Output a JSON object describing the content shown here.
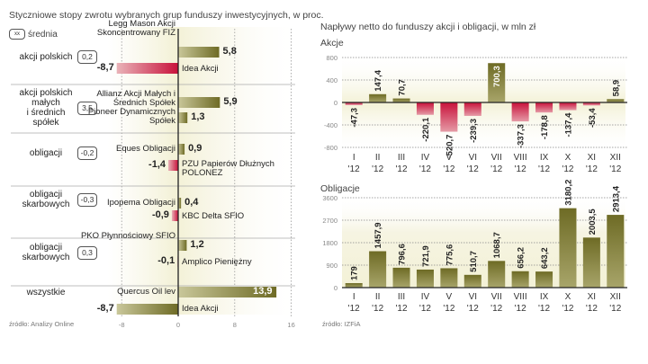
{
  "left": {
    "title": "Styczniowe stopy zwrotu wybranych grup funduszy inwestycyjnych, w proc.",
    "legend_box": "xx",
    "legend_label": "średnia",
    "source": "źródło: Analizy Online"
  },
  "right": {
    "title": "Napływy netto do funduszy akcji i obligacji, w mln zł",
    "source": "źródło: IZFiA"
  },
  "colors": {
    "positive": "#7a7a2e",
    "negative": "#c8213a",
    "background": "#f3f1d6",
    "axis": "#222222"
  },
  "chart_data": [
    {
      "type": "bar",
      "orientation": "horizontal",
      "title": "Styczniowe stopy zwrotu wybranych grup funduszy inwestycyjnych, w proc.",
      "xlim": [
        -8,
        16
      ],
      "xticks": [
        "-8",
        "0",
        "8",
        "16"
      ],
      "grid": true,
      "groups": [
        {
          "category": "akcji polskich",
          "average": "0,2",
          "best": {
            "fund": "Legg Mason Akcji Skoncentrowany FIZ",
            "value": 5.8,
            "label": "5,8"
          },
          "worst": {
            "fund": "Idea Akcji",
            "value": -8.7,
            "label": "-8,7"
          }
        },
        {
          "category": "akcji polskich małych i średnich spółek",
          "average": "3,5",
          "best": {
            "fund": "Allianz Akcji Małych i Średnich Spółek",
            "value": 5.9,
            "label": "5,9"
          },
          "worst": {
            "fund": "Pioneer Dynamicznych Spółek",
            "value": 1.3,
            "label": "1,3"
          }
        },
        {
          "category": "obligacji",
          "average": "-0,2",
          "best": {
            "fund": "Eques Obligacji",
            "value": 0.9,
            "label": "0,9"
          },
          "worst": {
            "fund": "PZU Papierów Dłużnych POLONEZ",
            "value": -1.4,
            "label": "-1,4"
          }
        },
        {
          "category": "obligacji skarbowych",
          "average": "-0,3",
          "best": {
            "fund": "Ipopema Obligacji",
            "value": 0.4,
            "label": "0,4"
          },
          "worst": {
            "fund": "KBC Delta SFIO",
            "value": -0.9,
            "label": "-0,9"
          }
        },
        {
          "category": "obligacji skarbowych",
          "average": "0,3",
          "best": {
            "fund": "PKO Płynnościowy SFIO",
            "value": 1.2,
            "label": "1,2"
          },
          "worst": {
            "fund": "Amplico Pieniężny",
            "value": -0.1,
            "label": "-0,1"
          }
        },
        {
          "category": "wszystkie",
          "average": "",
          "best": {
            "fund": "Quercus Oil lev",
            "value": 13.9,
            "label": "13,9"
          },
          "worst": {
            "fund": "Idea Akcji",
            "value": -8.7,
            "label": "-8,7"
          }
        }
      ]
    },
    {
      "type": "bar",
      "title": "Akcje",
      "categories": [
        "I '12",
        "II '12",
        "III '12",
        "IV '12",
        "V '12",
        "VI '12",
        "VII '12",
        "VIII '12",
        "IX '12",
        "X '12",
        "XI '12",
        "XII '12"
      ],
      "months": [
        "I",
        "II",
        "III",
        "IV",
        "V",
        "VI",
        "VII",
        "VIII",
        "IX",
        "X",
        "XI",
        "XII"
      ],
      "year": "'12",
      "values": [
        -47.3,
        147.4,
        70.7,
        -220.1,
        -520.7,
        -239.3,
        700.3,
        -337.3,
        -178.8,
        -137.4,
        -53.4,
        58.9
      ],
      "labels": [
        "-47,3",
        "147,4",
        "70,7",
        "-220,1",
        "-520,7",
        "-239,3",
        "700,3",
        "-337,3",
        "-178,8",
        "-137,4",
        "-53,4",
        "58,9"
      ],
      "ylim": [
        -800,
        800
      ],
      "yticks": [
        "800",
        "400",
        "0",
        "-400",
        "-800"
      ],
      "grid": true
    },
    {
      "type": "bar",
      "title": "Obligacje",
      "categories": [
        "I '12",
        "II '12",
        "III '12",
        "IV '12",
        "V '12",
        "VI '12",
        "VII '12",
        "VIII '12",
        "IX '12",
        "X '12",
        "XI '12",
        "XII '12"
      ],
      "months": [
        "I",
        "II",
        "III",
        "IV",
        "V",
        "VI",
        "VII",
        "VIII",
        "IX",
        "X",
        "XI",
        "XII"
      ],
      "year": "'12",
      "values": [
        179,
        1457.9,
        796.6,
        721.9,
        775.6,
        510.7,
        1068.7,
        656.2,
        643.2,
        3180.2,
        2003.5,
        2913.4
      ],
      "labels": [
        "179",
        "1457,9",
        "796,6",
        "721,9",
        "775,6",
        "510,7",
        "1068,7",
        "656,2",
        "643,2",
        "3180,2",
        "2003,5",
        "2913,4"
      ],
      "ylim": [
        0,
        3600
      ],
      "yticks": [
        "3600",
        "2700",
        "1800",
        "900",
        "0"
      ],
      "grid": true
    }
  ]
}
